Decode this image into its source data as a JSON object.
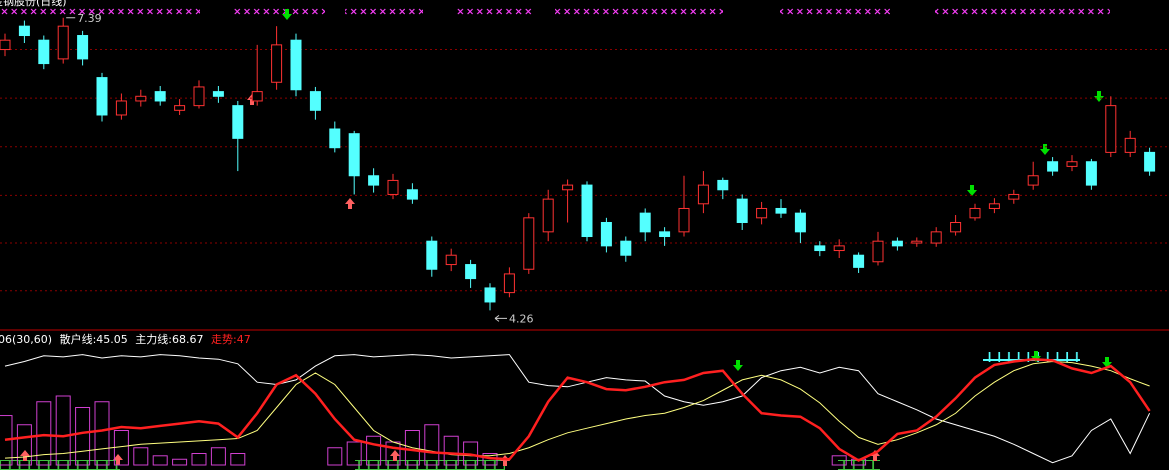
{
  "chart_data": [
    {
      "type": "candlestick",
      "title": "金钢股份(日线)",
      "open": [
        7.05,
        7.3,
        7.15,
        6.95,
        7.2,
        6.75,
        6.35,
        6.5,
        6.6,
        6.4,
        6.45,
        6.6,
        6.45,
        6.5,
        6.7,
        7.15,
        6.6,
        6.2,
        6.15,
        5.7,
        5.5,
        5.55,
        5.0,
        4.75,
        4.75,
        4.5,
        4.45,
        4.7,
        5.1,
        5.55,
        5.6,
        5.2,
        5.0,
        5.3,
        5.1,
        5.1,
        5.4,
        5.65,
        5.45,
        5.25,
        5.35,
        5.3,
        4.95,
        4.9,
        4.85,
        4.78,
        5.0,
        4.98,
        4.98,
        5.1,
        5.25,
        5.35,
        5.45,
        5.6,
        5.85,
        5.8,
        5.85,
        5.95,
        5.95,
        5.95
      ],
      "high": [
        7.22,
        7.36,
        7.2,
        7.39,
        7.25,
        6.8,
        6.58,
        6.62,
        6.66,
        6.52,
        6.72,
        6.66,
        6.5,
        7.1,
        7.3,
        7.22,
        6.65,
        6.28,
        6.18,
        5.78,
        5.72,
        5.62,
        5.05,
        4.92,
        4.8,
        4.55,
        4.72,
        5.3,
        5.55,
        5.66,
        5.64,
        5.25,
        5.05,
        5.35,
        5.15,
        5.7,
        5.75,
        5.68,
        5.5,
        5.42,
        5.45,
        5.34,
        5.0,
        5.02,
        4.88,
        5.1,
        5.04,
        5.04,
        5.15,
        5.28,
        5.4,
        5.46,
        5.55,
        5.85,
        5.9,
        5.92,
        5.88,
        6.55,
        6.18,
        6.0
      ],
      "low": [
        6.98,
        7.12,
        6.84,
        6.9,
        6.88,
        6.28,
        6.3,
        6.44,
        6.45,
        6.35,
        6.42,
        6.48,
        5.75,
        6.45,
        6.62,
        6.55,
        6.3,
        5.95,
        5.5,
        5.52,
        5.45,
        5.4,
        4.62,
        4.68,
        4.5,
        4.26,
        4.4,
        4.65,
        5.0,
        5.2,
        5.0,
        4.88,
        4.78,
        5.0,
        4.95,
        5.05,
        5.3,
        5.45,
        5.12,
        5.18,
        5.25,
        4.98,
        4.84,
        4.82,
        4.66,
        4.74,
        4.9,
        4.94,
        4.94,
        5.06,
        5.22,
        5.3,
        5.4,
        5.55,
        5.7,
        5.75,
        5.55,
        5.9,
        5.9,
        5.7
      ],
      "close": [
        7.15,
        7.2,
        6.9,
        7.3,
        6.95,
        6.35,
        6.5,
        6.55,
        6.5,
        6.45,
        6.65,
        6.55,
        6.1,
        6.6,
        7.1,
        6.62,
        6.4,
        6.0,
        5.7,
        5.6,
        5.65,
        5.45,
        4.7,
        4.85,
        4.6,
        4.35,
        4.65,
        5.25,
        5.45,
        5.6,
        5.05,
        4.95,
        4.85,
        5.1,
        5.05,
        5.35,
        5.6,
        5.55,
        5.2,
        5.35,
        5.3,
        5.1,
        4.9,
        4.95,
        4.72,
        5.0,
        4.95,
        5.0,
        5.1,
        5.2,
        5.35,
        5.4,
        5.5,
        5.7,
        5.75,
        5.85,
        5.6,
        6.45,
        6.1,
        5.75
      ],
      "ylim": [
        4.05,
        7.58
      ],
      "yticks": [
        4.47,
        4.98,
        5.49,
        6.01,
        6.53,
        7.05
      ],
      "grid": true,
      "up_color": "#ff3232",
      "down_color": "#54ffff",
      "grid_color": "#8b0000"
    },
    {
      "type": "line",
      "title": "06(30,60)",
      "ylim": [
        0,
        100
      ],
      "series": [
        {
          "name": "散户线:",
          "color": "#ffffff",
          "width": 1,
          "values": [
            86,
            90,
            95,
            94,
            96,
            93,
            95,
            94,
            96,
            95,
            93,
            92,
            88,
            72,
            70,
            74,
            86,
            95,
            96,
            94,
            95,
            96,
            95,
            93,
            94,
            95,
            96,
            72,
            69,
            68,
            72,
            76,
            74,
            73,
            60,
            55,
            52,
            55,
            60,
            76,
            82,
            85,
            80,
            85,
            82,
            62,
            55,
            48,
            40,
            35,
            30,
            25,
            18,
            10,
            2,
            8,
            30,
            40,
            10,
            45.05
          ]
        },
        {
          "name": "主力线:",
          "color": "#ffff80",
          "width": 1,
          "values": [
            6,
            7,
            9,
            10,
            12,
            14,
            16,
            18,
            19,
            20,
            21,
            22,
            23,
            30,
            50,
            70,
            80,
            70,
            50,
            30,
            20,
            15,
            12,
            9,
            8,
            8,
            10,
            15,
            22,
            28,
            32,
            36,
            40,
            43,
            45,
            50,
            56,
            65,
            74,
            78,
            74,
            66,
            54,
            38,
            24,
            18,
            22,
            28,
            35,
            45,
            60,
            72,
            82,
            88,
            90,
            89,
            86,
            82,
            75,
            68.67
          ]
        },
        {
          "name": "走势:",
          "color": "#ff2020",
          "width": 2.5,
          "values": [
            22,
            24,
            26,
            25,
            28,
            30,
            33,
            32,
            34,
            36,
            38,
            36,
            24,
            45,
            70,
            78,
            62,
            40,
            22,
            18,
            15,
            13,
            11,
            10,
            9,
            6,
            5,
            25,
            55,
            76,
            72,
            66,
            65,
            68,
            72,
            74,
            80,
            82,
            62,
            45,
            43,
            42,
            32,
            14,
            4,
            12,
            27,
            30,
            42,
            58,
            76,
            87,
            90,
            92,
            91,
            84,
            80,
            86,
            72,
            47.0
          ]
        }
      ],
      "histogram": {
        "color": "#d040d0",
        "values": [
          43,
          35,
          55,
          60,
          50,
          55,
          30,
          15,
          8,
          5,
          10,
          15,
          10,
          0,
          0,
          0,
          0,
          15,
          20,
          25,
          20,
          30,
          35,
          25,
          20,
          10,
          0,
          0,
          0,
          0,
          0,
          0,
          0,
          0,
          0,
          0,
          0,
          0,
          0,
          0,
          0,
          0,
          0,
          8,
          5,
          0,
          0,
          0,
          0,
          0,
          0,
          0,
          0,
          0,
          0,
          0,
          0,
          0,
          0,
          0
        ]
      }
    }
  ]
}
